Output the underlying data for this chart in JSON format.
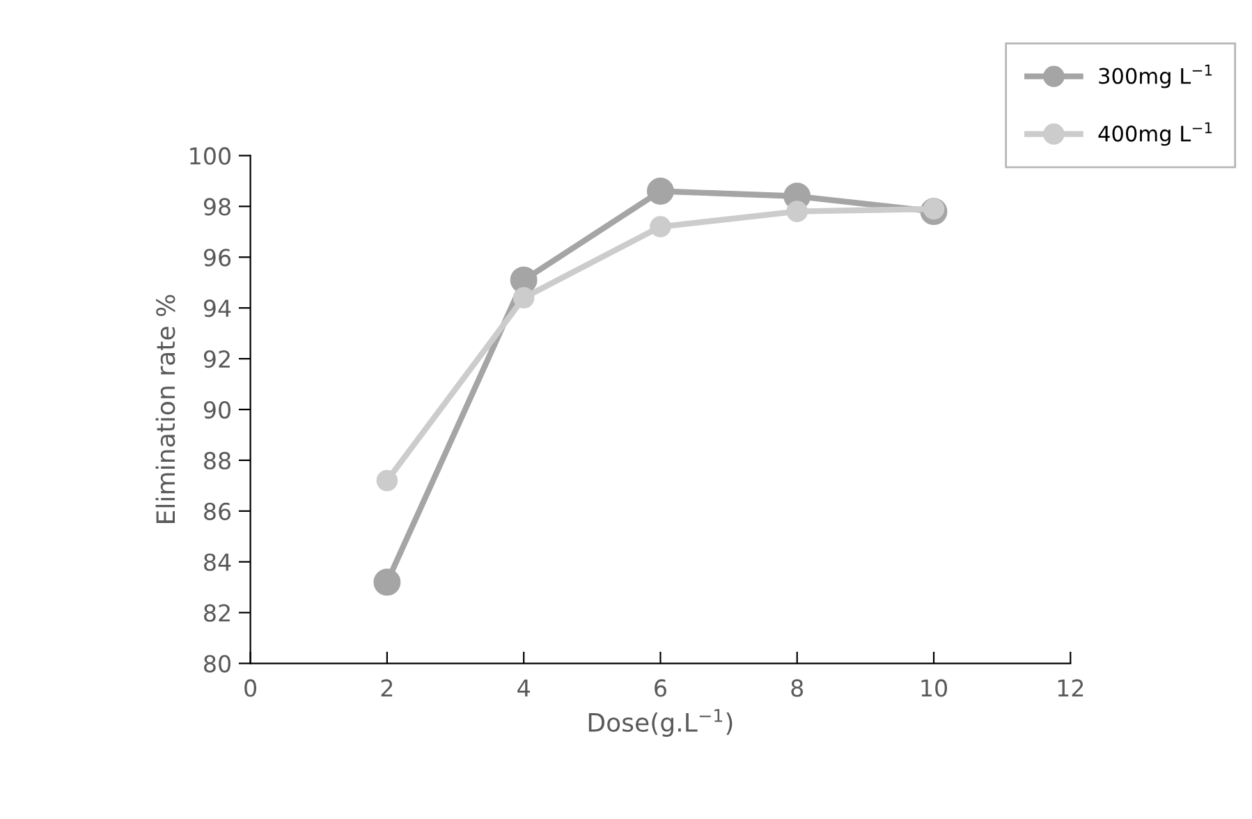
{
  "chart_data": {
    "type": "line",
    "xlabel": "Dose(g.L$^{−1}$)",
    "ylabel": "Elimination rate %",
    "x": [
      2,
      4,
      6,
      8,
      10
    ],
    "series": [
      {
        "name": "300mg L$^{−1}$",
        "color": "#a5a5a5",
        "values": [
          83.2,
          95.1,
          98.6,
          98.4,
          97.8
        ]
      },
      {
        "name": "400mg L$^{−1}$",
        "color": "#cccccc",
        "values": [
          87.2,
          94.4,
          97.2,
          97.8,
          97.9
        ]
      }
    ],
    "xlim": [
      0,
      12
    ],
    "xticks": [
      0,
      2,
      4,
      6,
      8,
      10,
      12
    ],
    "ylim": [
      80,
      100
    ],
    "yticks": [
      80,
      82,
      84,
      86,
      88,
      90,
      92,
      94,
      96,
      98,
      100
    ],
    "grid": false,
    "legend": "top right",
    "marker": "circle",
    "line_style": "solid"
  }
}
